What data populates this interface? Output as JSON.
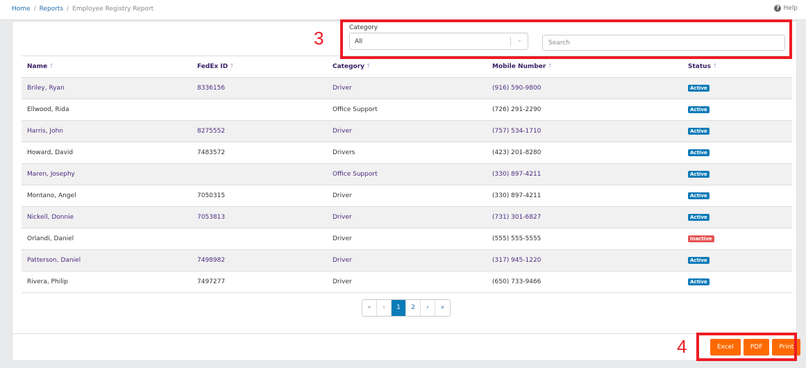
{
  "breadcrumb": [
    "Home",
    "Reports",
    "Employee Registry Report"
  ],
  "help_label": "Help",
  "filters": {
    "category_label": "Category",
    "category_value": "All",
    "search_placeholder": "Search"
  },
  "table": {
    "headers": [
      "Name",
      "FedEx ID",
      "Category",
      "Mobile Number",
      "Status"
    ],
    "rows": [
      [
        "Briley, Ryan",
        "8336156",
        "Driver",
        "(916) 590-9800",
        "Active"
      ],
      [
        "Ellwood, Rida",
        "",
        "Office Support",
        "(726) 291-2290",
        "Active"
      ],
      [
        "Harris, John",
        "8275552",
        "Driver",
        "(757) 534-1710",
        "Active"
      ],
      [
        "Howard, David",
        "7483572",
        "Drivers",
        "(423) 201-8280",
        "Active"
      ],
      [
        "Maren, Josephy",
        "",
        "Office Support",
        "(330) 897-4211",
        "Active"
      ],
      [
        "Montano, Angel",
        "7050315",
        "Driver",
        "(330) 897-4211",
        "Active"
      ],
      [
        "Nickell, Donnie",
        "7053813",
        "Driver",
        "(731) 301-6827",
        "Active"
      ],
      [
        "Orlandi, Daniel",
        "",
        "Driver",
        "(555) 555-5555",
        "Inactive"
      ],
      [
        "Patterson, Daniel",
        "7498982",
        "Driver",
        "(317) 945-1220",
        "Active"
      ],
      [
        "Rivera, Philip",
        "7497277",
        "Driver",
        "(650) 733-9466",
        "Active"
      ]
    ]
  },
  "pagination": {
    "items": [
      "«",
      "‹",
      "1",
      "2",
      "›",
      "»"
    ],
    "current": "1"
  },
  "export": {
    "excel": "Excel",
    "pdf": "PDF",
    "print": "Print"
  },
  "annotations": {
    "filters": "3",
    "export": "4"
  },
  "colors": {
    "accent": "#0c7bb8",
    "export_button": "#ff6a00",
    "inactive": "#e55353",
    "annotation": "#ed1c24"
  }
}
